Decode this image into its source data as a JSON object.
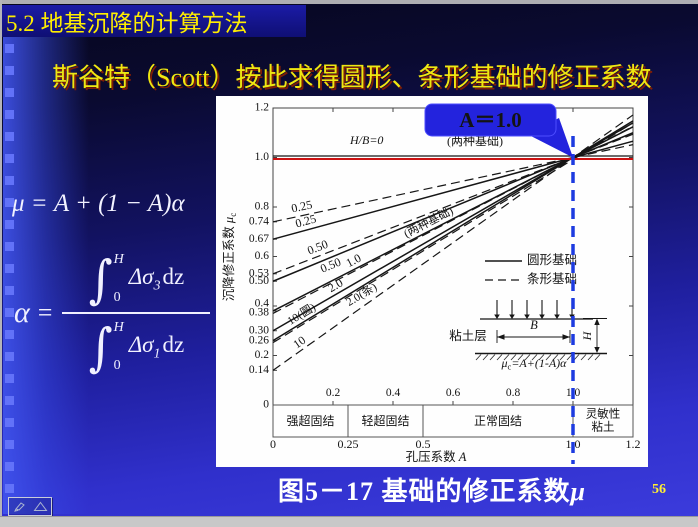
{
  "slide": {
    "title": "5.2 地基沉降的计算方法",
    "subtitle": "斯谷特（Scott）按此求得圆形、条形基础的修正系数",
    "caption": {
      "prefix": "图5－17 基础的修正系数",
      "symbol": "μ"
    },
    "page_number": "56"
  },
  "formulas": {
    "mu_formula": "μ = A + (1 − A)α",
    "alpha": {
      "lhs": "α",
      "equals": "=",
      "integral": "∫",
      "upper": "H",
      "lower": "0",
      "num": {
        "body": "Δσ",
        "sub": "3",
        "tail": "dz"
      },
      "den": {
        "body": "Δσ",
        "sub": "1",
        "tail": "dz"
      }
    }
  },
  "callout": {
    "label": "A＝1.0"
  },
  "colors": {
    "callout_bg": "#2323dd",
    "callout_border": "#4d4dff",
    "callout_text": "#ffee22",
    "reference_red": "#cc1111",
    "guide_blue": "#1d3be0"
  },
  "chart_data": {
    "type": "line",
    "title": "图5－17 基础的修正系数μ",
    "xlabel_prefix": "孔压系数 ",
    "xlabel_var": "A",
    "ylabel_prefix": "沉降修正系数 ",
    "ylabel_var": "μ",
    "ylabel_sub": "c",
    "xlim": [
      0,
      1.2
    ],
    "ylim": [
      0,
      1.2
    ],
    "model": "mu = intercept + (1 - intercept) * A ; all lines converge at (1.0, 1.0)",
    "converge": {
      "x": 1.0,
      "y": 1.0
    },
    "x_ticks": [
      {
        "v": 0.2,
        "t": "0.2"
      },
      {
        "v": 0.4,
        "t": "0.4"
      },
      {
        "v": 0.6,
        "t": "0.6"
      },
      {
        "v": 0.8,
        "t": "0.8"
      },
      {
        "v": 1.0,
        "t": "1.0"
      }
    ],
    "top_ticks": [
      0.2,
      0.4,
      0.6,
      0.8,
      1.0
    ],
    "right_ticks": [
      0.2,
      0.4,
      0.6,
      0.8,
      1.0
    ],
    "y_ticks": [
      {
        "v": 1.2,
        "t": "1.2"
      },
      {
        "v": 1.0,
        "t": "1.0"
      },
      {
        "v": 0.8,
        "t": "0.8"
      },
      {
        "v": 0.74,
        "t": "0.74"
      },
      {
        "v": 0.67,
        "t": "0.67"
      },
      {
        "v": 0.6,
        "t": "0.6"
      },
      {
        "v": 0.53,
        "t": "0.53"
      },
      {
        "v": 0.5,
        "t": "0.50"
      },
      {
        "v": 0.4,
        "t": "0.4",
        "dy": -2
      },
      {
        "v": 0.38,
        "t": "0.38",
        "dy": 2
      },
      {
        "v": 0.3,
        "t": "0.30"
      },
      {
        "v": 0.26,
        "t": "0.26"
      },
      {
        "v": 0.2,
        "t": "0.2"
      },
      {
        "v": 0.14,
        "t": "0.14"
      },
      {
        "v": 0,
        "t": "0"
      }
    ],
    "reference": {
      "y": 1.0,
      "h_b": "0",
      "label": "H/B=0",
      "note": "(两种基础)",
      "color": "#cc1111"
    },
    "series": [
      {
        "h_b": "0.25",
        "foundation": "圆形",
        "style": "solid",
        "intercept": 0.67
      },
      {
        "h_b": "0.50",
        "foundation": "圆形",
        "style": "solid",
        "intercept": 0.5
      },
      {
        "h_b": "1.0",
        "foundation": "圆形",
        "style": "solid",
        "intercept": 0.38
      },
      {
        "h_b": "2.0",
        "foundation": "圆形",
        "style": "solid",
        "intercept": 0.3
      },
      {
        "h_b": "10",
        "foundation": "圆形",
        "style": "solid",
        "intercept": 0.26
      },
      {
        "h_b": "0.25",
        "foundation": "条形",
        "style": "dashed",
        "intercept": 0.74
      },
      {
        "h_b": "0.50",
        "foundation": "条形",
        "style": "dashed",
        "intercept": 0.53
      },
      {
        "h_b": "1.0",
        "foundation": "条形",
        "style": "dashed",
        "intercept": 0.37
      },
      {
        "h_b": "2.0",
        "foundation": "条形",
        "style": "dashed",
        "intercept": 0.26,
        "dy": 2
      },
      {
        "h_b": "10",
        "foundation": "条形",
        "style": "dashed",
        "intercept": 0.14
      }
    ],
    "curve_labels": [
      {
        "text": "0.25",
        "intercept": 0.74,
        "x": 86,
        "side": "above"
      },
      {
        "text": "0.25",
        "intercept": 0.67,
        "x": 90,
        "side": "above"
      },
      {
        "text": "0.50",
        "intercept": 0.53,
        "x": 102,
        "side": "above"
      },
      {
        "text": "0.50",
        "intercept": 0.5,
        "x": 115,
        "side": "below"
      },
      {
        "text": "1.0",
        "intercept": 0.38,
        "x": 138,
        "side": "above"
      },
      {
        "text": "(两种基础)",
        "intercept": 0.38,
        "x": 213,
        "side": "above",
        "size": 11.5
      },
      {
        "text": "2.0",
        "intercept": 0.3,
        "x": 120,
        "side": "above"
      },
      {
        "text": "2.0(条)",
        "intercept": 0.26,
        "x": 146,
        "side": "below",
        "size": 11.5
      },
      {
        "text": "10(圆)",
        "intercept": 0.26,
        "x": 86,
        "side": "above",
        "size": 11.5
      },
      {
        "text": "10",
        "intercept": 0.14,
        "x": 84,
        "side": "above"
      }
    ],
    "legend": [
      {
        "style": "solid",
        "label": "圆形基础"
      },
      {
        "style": "dashed",
        "label": "条形基础"
      }
    ],
    "regions": {
      "cells": [
        {
          "lines": [
            "强超固结"
          ],
          "from": 0,
          "to": 0.25
        },
        {
          "lines": [
            "轻超固结"
          ],
          "from": 0.25,
          "to": 0.5
        },
        {
          "lines": [
            "正常固结"
          ],
          "from": 0.5,
          "to": 1.0
        },
        {
          "lines": [
            "灵敏性",
            "粘土"
          ],
          "from": 1.0,
          "to": 1.2
        }
      ],
      "scale": [
        {
          "v": 0,
          "t": "0"
        },
        {
          "v": 0.25,
          "t": "0.25"
        },
        {
          "v": 0.5,
          "t": "0.5"
        },
        {
          "v": 1.0,
          "t": "1.0"
        },
        {
          "v": 1.2,
          "t": "1.2"
        }
      ]
    },
    "guide_line": {
      "x": 1.0,
      "style": "dashed",
      "color": "#1d3be0"
    },
    "inset": {
      "clay": "粘土层",
      "width": "B",
      "depth": "H",
      "arrows": 6,
      "formula": {
        "sym": "μ",
        "sub": "c",
        "rest": "=A+(1-A)",
        "alpha": "α"
      }
    }
  }
}
